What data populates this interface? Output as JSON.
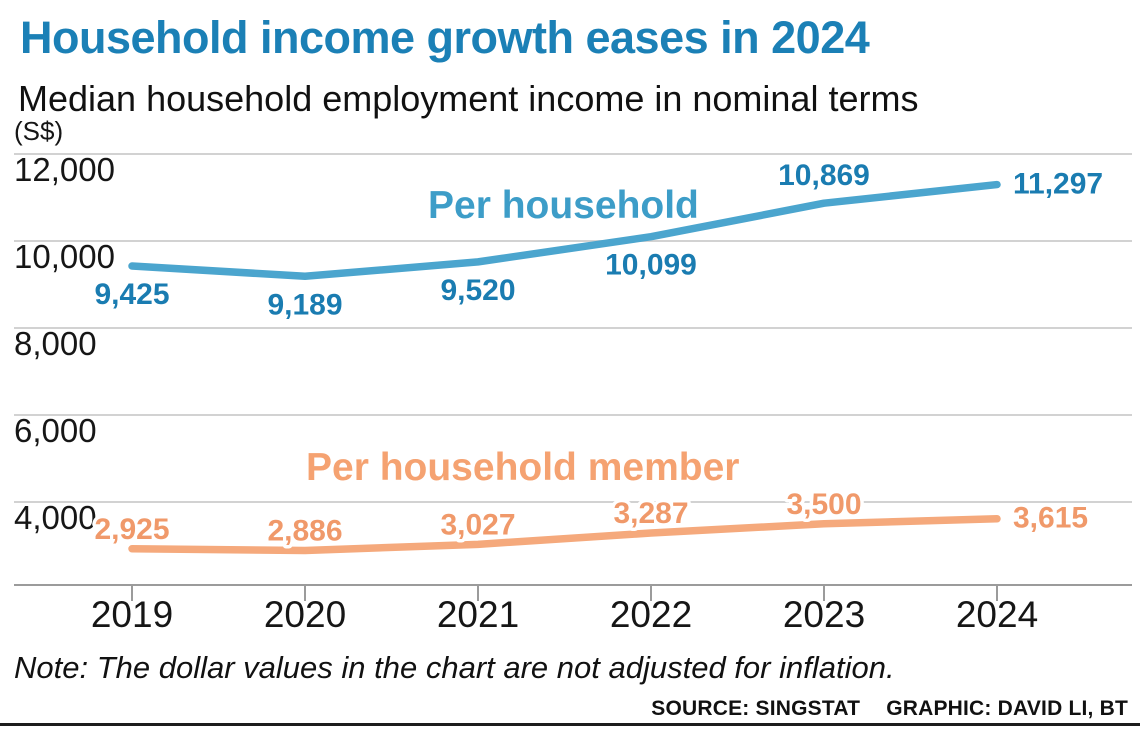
{
  "header": {
    "title": "Household income growth eases in 2024",
    "subtitle": "Median household employment income in nominal terms",
    "unit": "(S$)"
  },
  "chart_data": {
    "type": "line",
    "title": "Household income growth eases in 2024",
    "subtitle": "Median household employment income in nominal terms",
    "unit": "S$",
    "x": [
      "2019",
      "2020",
      "2021",
      "2022",
      "2023",
      "2024"
    ],
    "yticks": [
      {
        "value": 12000,
        "label": "12,000"
      },
      {
        "value": 10000,
        "label": "10,000"
      },
      {
        "value": 8000,
        "label": "8,000"
      },
      {
        "value": 6000,
        "label": "6,000"
      },
      {
        "value": 4000,
        "label": "4,000"
      }
    ],
    "ylim": [
      2100,
      12400
    ],
    "grid": true,
    "legend_position": "inline",
    "series": [
      {
        "name": "Per household",
        "color": "#4BA5CE",
        "label_color": "#1A7CB1",
        "values": [
          9425,
          9189,
          9520,
          10099,
          10869,
          11297
        ],
        "labels": [
          "9,425",
          "9,189",
          "9,520",
          "10,099",
          "10,869",
          "11,297"
        ],
        "label_pos": [
          "below",
          "below",
          "below",
          "below",
          "above",
          "right"
        ]
      },
      {
        "name": "Per household member",
        "color": "#F5A97C",
        "label_color": "#F0996A",
        "values": [
          2925,
          2886,
          3027,
          3287,
          3500,
          3615
        ],
        "labels": [
          "2,925",
          "2,886",
          "3,027",
          "3,287",
          "3,500",
          "3,615"
        ],
        "label_pos": [
          "above",
          "above",
          "above",
          "above",
          "above",
          "right"
        ]
      }
    ]
  },
  "footer": {
    "note": "Note: The dollar values in the chart are not adjusted for inflation.",
    "source": "SOURCE: SINGSTAT",
    "credit": "GRAPHIC: DAVID LI, BT"
  },
  "colors": {
    "title": "#1B80B6",
    "series_label_blue": "#3D9DC8",
    "series_label_orange": "#F5A271",
    "line_blue": "#4BA5CE",
    "line_orange": "#F5A97C",
    "data_label_blue": "#1A7CB1",
    "data_label_orange": "#F0996A",
    "grid": "#D2D2D2",
    "axis": "#9B9B9B",
    "text": "#161616"
  }
}
